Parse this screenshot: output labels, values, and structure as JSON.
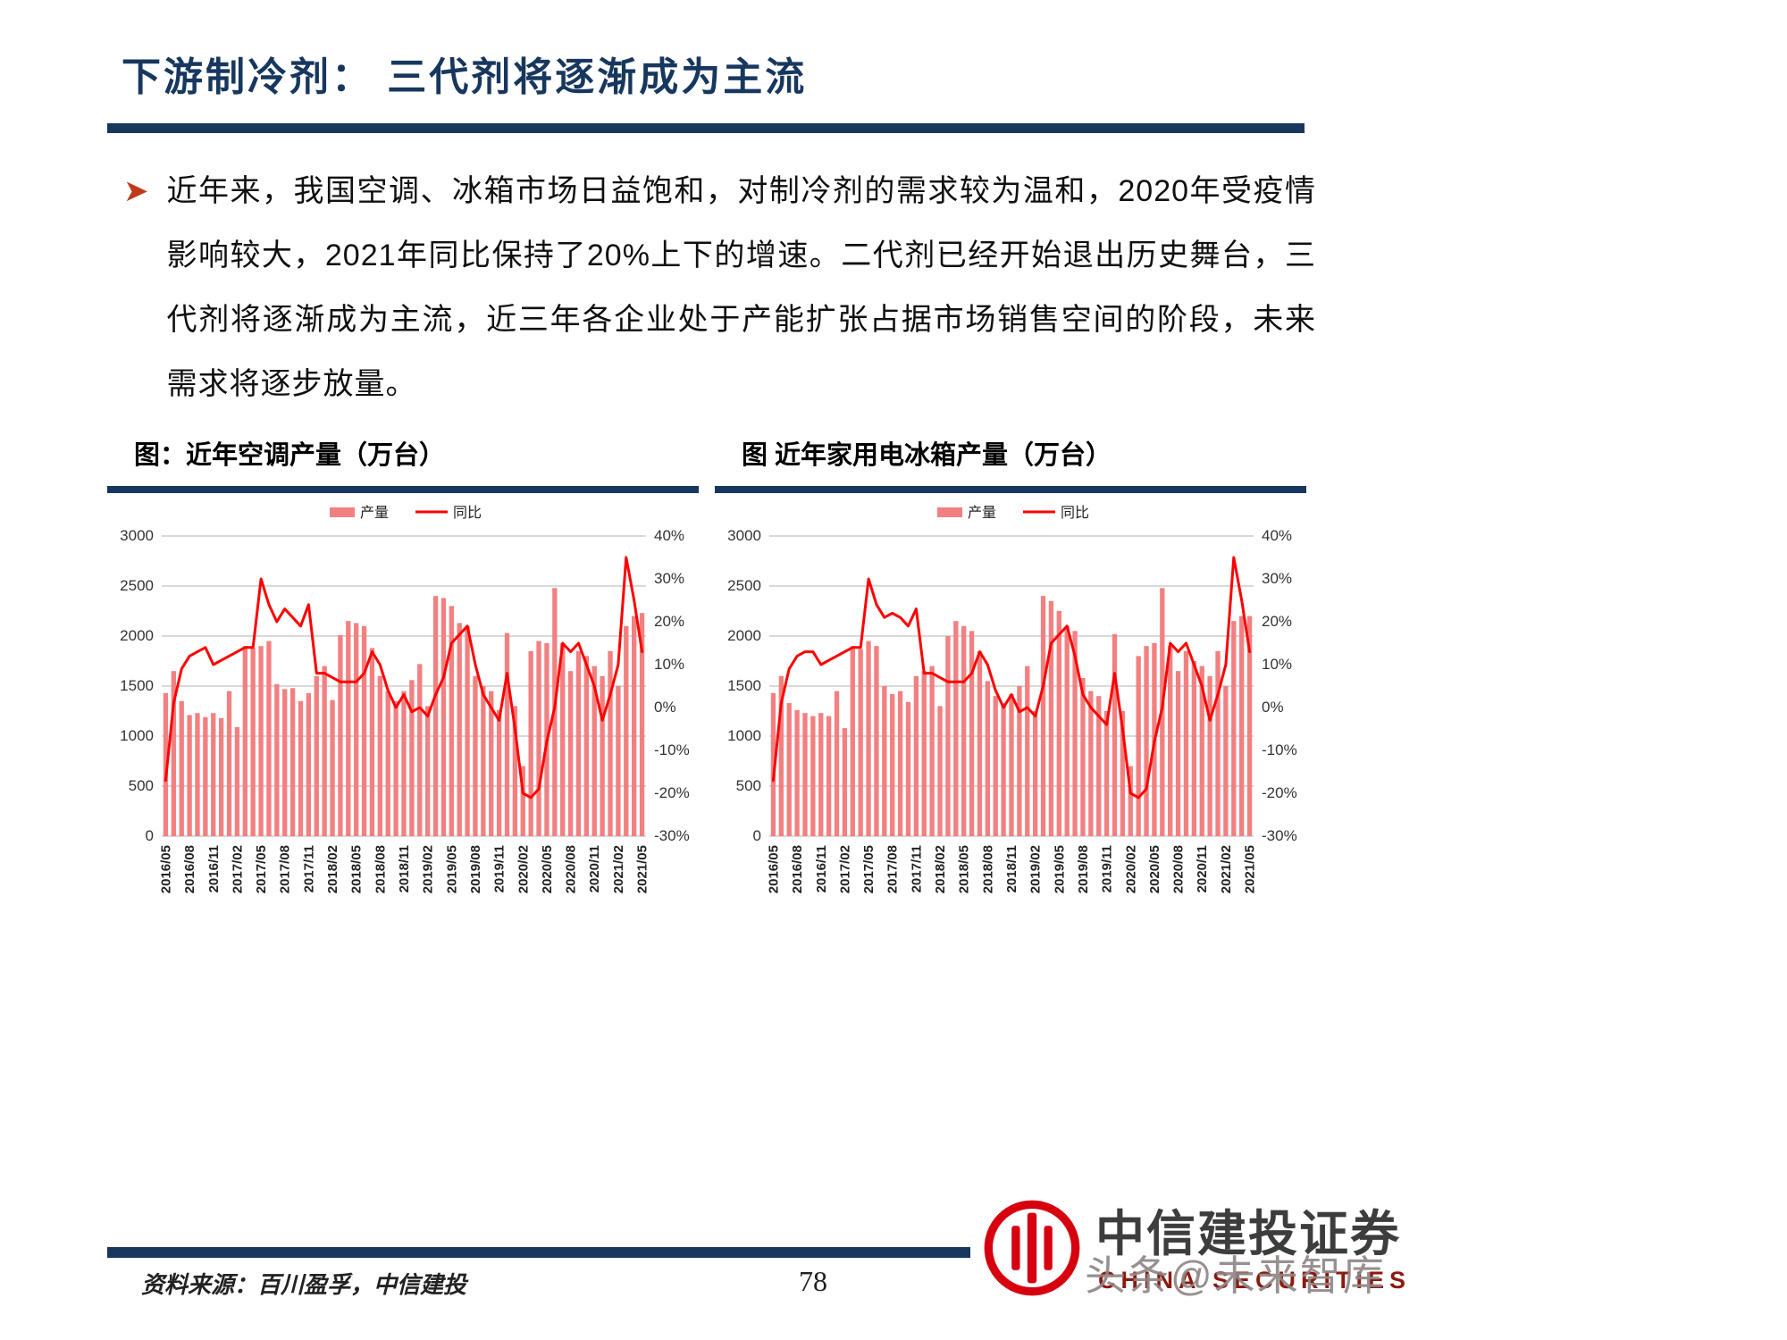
{
  "page": {
    "title": "下游制冷剂： 三代剂将逐渐成为主流",
    "bullet_text": "近年来，我国空调、冰箱市场日益饱和，对制冷剂的需求较为温和，2020年受疫情影响较大，2021年同比保持了20%上下的增速。二代剂已经开始退出历史舞台，三代剂将逐渐成为主流，近三年各企业处于产能扩张占据市场销售空间的阶段，未来需求将逐步放量。",
    "source_note": "资料来源：百川盈孚，中信建投",
    "page_number": "78"
  },
  "branding": {
    "company_cn": "中信建投证券",
    "company_en": "CHINA SECURITIES",
    "watermark": "头条@未来智库"
  },
  "colors": {
    "navy": "#17375E",
    "bar_pink": "#F28080",
    "line_red": "#FF0000",
    "bullet_red": "#C0391B",
    "logo_red": "#D7000F",
    "grid_gray": "#b3b3b3"
  },
  "chart_data": [
    {
      "type": "bar+line",
      "title": "图：近年空调产量（万台）",
      "legend": [
        "产量",
        "同比"
      ],
      "x_tick_every": 3,
      "left_axis": {
        "min": 0,
        "max": 3000,
        "step": 500
      },
      "right_axis": {
        "min": -30,
        "max": 40,
        "step": 10,
        "suffix": "%"
      },
      "x": [
        "2016/05",
        "2016/06",
        "2016/07",
        "2016/08",
        "2016/09",
        "2016/10",
        "2016/11",
        "2016/12",
        "2017/01",
        "2017/02",
        "2017/03",
        "2017/04",
        "2017/05",
        "2017/06",
        "2017/07",
        "2017/08",
        "2017/09",
        "2017/10",
        "2017/11",
        "2017/12",
        "2018/01",
        "2018/02",
        "2018/03",
        "2018/04",
        "2018/05",
        "2018/06",
        "2018/07",
        "2018/08",
        "2018/09",
        "2018/10",
        "2018/11",
        "2018/12",
        "2019/01",
        "2019/02",
        "2019/03",
        "2019/04",
        "2019/05",
        "2019/06",
        "2019/07",
        "2019/08",
        "2019/09",
        "2019/10",
        "2019/11",
        "2019/12",
        "2020/01",
        "2020/02",
        "2020/03",
        "2020/04",
        "2020/05",
        "2020/06",
        "2020/07",
        "2020/08",
        "2020/09",
        "2020/10",
        "2020/11",
        "2020/12",
        "2021/01",
        "2021/02",
        "2021/03",
        "2021/04",
        "2021/05"
      ],
      "series": [
        {
          "name": "产量",
          "kind": "bar",
          "axis": "left",
          "values": [
            1430,
            1650,
            1350,
            1210,
            1230,
            1190,
            1230,
            1180,
            1450,
            1090,
            1900,
            1880,
            1900,
            1950,
            1520,
            1470,
            1480,
            1350,
            1430,
            1600,
            1700,
            1360,
            2010,
            2150,
            2130,
            2100,
            1880,
            1600,
            1450,
            1350,
            1450,
            1560,
            1720,
            1300,
            2400,
            2380,
            2300,
            2130,
            2100,
            1600,
            1500,
            1450,
            1260,
            2030,
            1300,
            700,
            1850,
            1950,
            1930,
            2480,
            1930,
            1650,
            1850,
            1800,
            1700,
            1600,
            1850,
            1500,
            2100,
            2200,
            2230
          ]
        },
        {
          "name": "同比",
          "kind": "line",
          "axis": "right",
          "values": [
            -17,
            1,
            9,
            12,
            13,
            14,
            10,
            11,
            12,
            13,
            14,
            14,
            30,
            24,
            20,
            23,
            21,
            19,
            24,
            8,
            8,
            7,
            6,
            6,
            6,
            8,
            13,
            10,
            4,
            0,
            3,
            -1,
            0,
            -2,
            3,
            7,
            15,
            17,
            19,
            10,
            3,
            0,
            -3,
            8,
            -5,
            -20,
            -21,
            -19,
            -8,
            0,
            15,
            13,
            15,
            10,
            5,
            -3,
            3,
            10,
            35,
            25,
            13
          ]
        }
      ]
    },
    {
      "type": "bar+line",
      "title": "图 近年家用电冰箱产量（万台）",
      "legend": [
        "产量",
        "同比"
      ],
      "x_tick_every": 3,
      "left_axis": {
        "min": 0,
        "max": 3000,
        "step": 500
      },
      "right_axis": {
        "min": -30,
        "max": 40,
        "step": 10,
        "suffix": "%"
      },
      "x": [
        "2016/05",
        "2016/06",
        "2016/07",
        "2016/08",
        "2016/09",
        "2016/10",
        "2016/11",
        "2016/12",
        "2017/01",
        "2017/02",
        "2017/03",
        "2017/04",
        "2017/05",
        "2017/06",
        "2017/07",
        "2017/08",
        "2017/09",
        "2017/10",
        "2017/11",
        "2017/12",
        "2018/01",
        "2018/02",
        "2018/03",
        "2018/04",
        "2018/05",
        "2018/06",
        "2018/07",
        "2018/08",
        "2018/09",
        "2018/10",
        "2018/11",
        "2018/12",
        "2019/01",
        "2019/02",
        "2019/03",
        "2019/04",
        "2019/05",
        "2019/06",
        "2019/07",
        "2019/08",
        "2019/09",
        "2019/10",
        "2019/11",
        "2019/12",
        "2020/01",
        "2020/02",
        "2020/03",
        "2020/04",
        "2020/05",
        "2020/06",
        "2020/07",
        "2020/08",
        "2020/09",
        "2020/10",
        "2020/11",
        "2020/12",
        "2021/01",
        "2021/02",
        "2021/03",
        "2021/04",
        "2021/05"
      ],
      "series": [
        {
          "name": "产量",
          "kind": "bar",
          "axis": "left",
          "values": [
            1430,
            1600,
            1330,
            1260,
            1230,
            1200,
            1230,
            1200,
            1450,
            1080,
            1900,
            1870,
            1950,
            1900,
            1500,
            1420,
            1450,
            1340,
            1600,
            1650,
            1700,
            1300,
            2000,
            2150,
            2100,
            2050,
            1850,
            1550,
            1400,
            1330,
            1420,
            1500,
            1700,
            1250,
            2400,
            2350,
            2250,
            2100,
            2050,
            1580,
            1450,
            1400,
            1250,
            2020,
            1250,
            700,
            1800,
            1900,
            1930,
            2480,
            1900,
            1650,
            1850,
            1750,
            1700,
            1600,
            1850,
            1500,
            2150,
            2200,
            2200
          ]
        },
        {
          "name": "同比",
          "kind": "line",
          "axis": "right",
          "values": [
            -17,
            1,
            9,
            12,
            13,
            13,
            10,
            11,
            12,
            13,
            14,
            14,
            30,
            24,
            21,
            22,
            21,
            19,
            23,
            8,
            8,
            7,
            6,
            6,
            6,
            8,
            13,
            10,
            4,
            0,
            3,
            -1,
            0,
            -2,
            5,
            15,
            17,
            19,
            12,
            3,
            0,
            -2,
            -4,
            8,
            -5,
            -20,
            -21,
            -19,
            -8,
            0,
            15,
            13,
            15,
            10,
            5,
            -3,
            3,
            10,
            35,
            25,
            13
          ]
        }
      ]
    }
  ]
}
